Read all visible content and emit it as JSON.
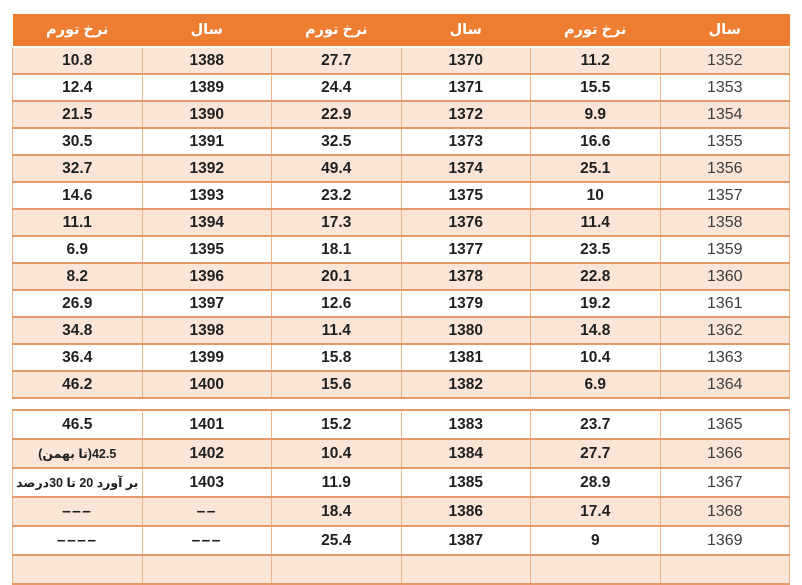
{
  "colors": {
    "header_bg": "#ED7D31",
    "banded_row_bg": "#FBE5D6",
    "plain_row_bg": "#FFFFFF",
    "border_horizontal": "#E69A69",
    "border_vertical": "#F0B488",
    "header_text": "#FFFFFF",
    "cell_text": "#1F1F1F"
  },
  "chart_data": {
    "type": "table",
    "title": "",
    "direction": "rtl",
    "columns": [
      "سال",
      "نرخ تورم",
      "سال",
      "نرخ تورم",
      "سال",
      "نرخ تورم"
    ],
    "rows_upper": [
      [
        "1352",
        "11.2",
        "1370",
        "27.7",
        "1388",
        "10.8"
      ],
      [
        "1353",
        "15.5",
        "1371",
        "24.4",
        "1389",
        "12.4"
      ],
      [
        "1354",
        "9.9",
        "1372",
        "22.9",
        "1390",
        "21.5"
      ],
      [
        "1355",
        "16.6",
        "1373",
        "32.5",
        "1391",
        "30.5"
      ],
      [
        "1356",
        "25.1",
        "1374",
        "49.4",
        "1392",
        "32.7"
      ],
      [
        "1357",
        "10",
        "1375",
        "23.2",
        "1393",
        "14.6"
      ],
      [
        "1358",
        "11.4",
        "1376",
        "17.3",
        "1394",
        "11.1"
      ],
      [
        "1359",
        "23.5",
        "1377",
        "18.1",
        "1395",
        "6.9"
      ],
      [
        "1360",
        "22.8",
        "1378",
        "20.1",
        "1396",
        "8.2"
      ],
      [
        "1361",
        "19.2",
        "1379",
        "12.6",
        "1397",
        "26.9"
      ],
      [
        "1362",
        "14.8",
        "1380",
        "11.4",
        "1398",
        "34.8"
      ],
      [
        "1363",
        "10.4",
        "1381",
        "15.8",
        "1399",
        "36.4"
      ],
      [
        "1364",
        "6.9",
        "1382",
        "15.6",
        "1400",
        "46.2"
      ]
    ],
    "rows_lower": [
      [
        "1365",
        "23.7",
        "1383",
        "15.2",
        "1401",
        "46.5"
      ],
      [
        "1366",
        "27.7",
        "1384",
        "10.4",
        "1402",
        "42.5(تا بهمن)"
      ],
      [
        "1367",
        "28.9",
        "1385",
        "11.9",
        "1403",
        "بر آورد 20 تا 30درصد"
      ],
      [
        "1368",
        "17.4",
        "1386",
        "18.4",
        "––",
        "–––"
      ],
      [
        "1369",
        "9",
        "1387",
        "25.4",
        "–––",
        "––––"
      ],
      [
        "",
        "",
        "",
        "",
        "",
        ""
      ]
    ]
  }
}
